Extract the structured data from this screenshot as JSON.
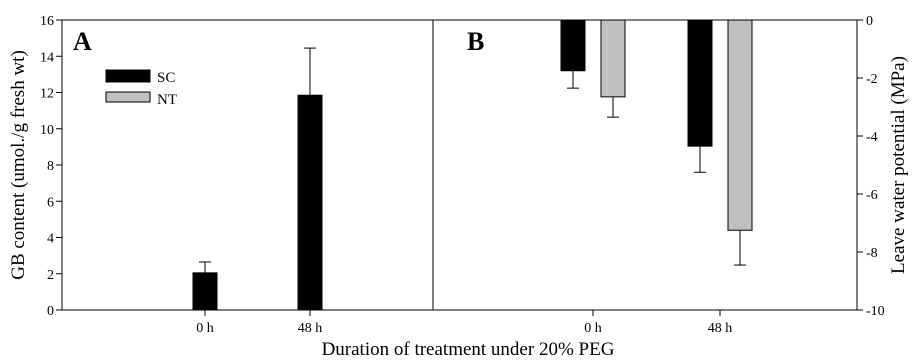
{
  "xlabel": "Duration of treatment under 20% PEG",
  "legend": [
    {
      "name": "SC",
      "color": "#000000"
    },
    {
      "name": "NT",
      "color": "#c0c0c0"
    }
  ],
  "chart_data": [
    {
      "type": "bar",
      "panel_label": "A",
      "categories": [
        "0 h",
        "48 h"
      ],
      "ylabel": "GB content (umol./g fresh wt)",
      "ylim": [
        0,
        16
      ],
      "yticks": [
        0,
        2,
        4,
        6,
        8,
        10,
        12,
        14,
        16
      ],
      "series": [
        {
          "name": "SC",
          "values": [
            2.05,
            11.85
          ],
          "errors": [
            0.6,
            2.6
          ]
        },
        {
          "name": "NT",
          "values": [
            0,
            0
          ],
          "errors": [
            0,
            0
          ]
        }
      ],
      "legend_position": "upper-left",
      "y_axis_side": "left"
    },
    {
      "type": "bar",
      "panel_label": "B",
      "categories": [
        "0 h",
        "48 h"
      ],
      "ylabel": "Leave water potential (MPa)",
      "ylim": [
        -10,
        0
      ],
      "yticks": [
        0,
        -2,
        -4,
        -6,
        -8,
        -10
      ],
      "series": [
        {
          "name": "SC",
          "values": [
            -1.75,
            -4.35
          ],
          "errors": [
            0.6,
            0.9
          ]
        },
        {
          "name": "NT",
          "values": [
            -2.65,
            -7.25
          ],
          "errors": [
            0.7,
            1.2
          ]
        }
      ],
      "y_axis_side": "right"
    }
  ]
}
